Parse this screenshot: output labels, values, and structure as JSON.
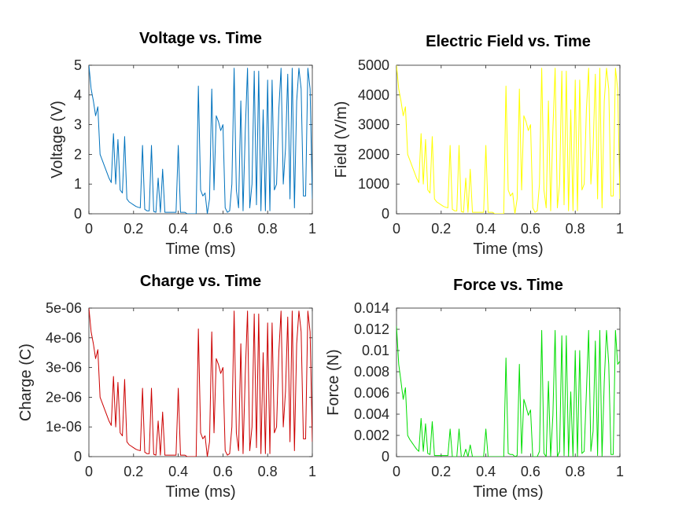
{
  "figure": {
    "background": "#ffffff"
  },
  "chart_data": [
    {
      "type": "line",
      "title": "Voltage vs. Time",
      "xlabel": "Time (ms)",
      "ylabel": "Voltage (V)",
      "xlim": [
        0,
        1
      ],
      "ylim": [
        0,
        5
      ],
      "xticks": [
        "0",
        "0.2",
        "0.4",
        "0.6",
        "0.8",
        "1"
      ],
      "yticks": [
        "0",
        "1",
        "2",
        "3",
        "4",
        "5"
      ],
      "grid": false,
      "series": [
        {
          "color": "#0072BD",
          "x": [
            0,
            0.01,
            0.02,
            0.03,
            0.04,
            0.05,
            0.06,
            0.07,
            0.08,
            0.09,
            0.1,
            0.11,
            0.12,
            0.13,
            0.14,
            0.15,
            0.16,
            0.17,
            0.18,
            0.19,
            0.2,
            0.21,
            0.22,
            0.23,
            0.24,
            0.25,
            0.26,
            0.27,
            0.28,
            0.29,
            0.3,
            0.31,
            0.32,
            0.33,
            0.34,
            0.35,
            0.36,
            0.37,
            0.38,
            0.39,
            0.4,
            0.41,
            0.42,
            0.43,
            0.44,
            0.45,
            0.46,
            0.47,
            0.48,
            0.49,
            0.5,
            0.51,
            0.52,
            0.53,
            0.54,
            0.55,
            0.56,
            0.57,
            0.58,
            0.59,
            0.6,
            0.61,
            0.62,
            0.63,
            0.64,
            0.65,
            0.66,
            0.67,
            0.68,
            0.69,
            0.7,
            0.71,
            0.72,
            0.73,
            0.74,
            0.75,
            0.76,
            0.77,
            0.78,
            0.79,
            0.8,
            0.81,
            0.82,
            0.83,
            0.84,
            0.85,
            0.86,
            0.87,
            0.88,
            0.89,
            0.9,
            0.91,
            0.92,
            0.93,
            0.94,
            0.95,
            0.96,
            0.97,
            0.98,
            0.99,
            1
          ],
          "y": [
            5,
            4.2,
            3.8,
            3.3,
            3.6,
            2.0,
            1.8,
            1.6,
            1.4,
            1.2,
            1.05,
            2.7,
            1.0,
            2.5,
            0.8,
            0.7,
            2.6,
            0.5,
            0.4,
            0.35,
            0.3,
            0.25,
            0.22,
            0.2,
            2.3,
            0.15,
            0.1,
            0.1,
            2.3,
            0.08,
            0.05,
            1.2,
            0.05,
            1.5,
            0.05,
            0.05,
            0.05,
            0.05,
            0.05,
            0.05,
            2.3,
            0.05,
            0.05,
            0.05,
            0,
            0,
            0,
            0,
            0,
            4.3,
            0.8,
            0.6,
            0.7,
            0,
            0.5,
            4.2,
            0.8,
            3.3,
            3.1,
            2.8,
            3.0,
            0.2,
            0.05,
            0.1,
            1.0,
            4.9,
            0.8,
            0.2,
            3.8,
            0.1,
            2.8,
            4.9,
            0.2,
            1.0,
            4.8,
            0.3,
            4.8,
            0.1,
            3.5,
            0.1,
            4.5,
            0.1,
            4.5,
            0.8,
            1.0,
            3.5,
            4.9,
            1.0,
            2.2,
            4.7,
            0.5,
            4.9,
            0.2,
            3.8,
            4.9,
            4.2,
            0.6,
            0.6,
            4.9,
            4.2,
            0.5
          ]
        }
      ]
    },
    {
      "type": "line",
      "title": "Electric Field vs. Time",
      "xlabel": "Time (ms)",
      "ylabel": "Field (V/m)",
      "xlim": [
        0,
        1
      ],
      "ylim": [
        0,
        5000
      ],
      "xticks": [
        "0",
        "0.2",
        "0.4",
        "0.6",
        "0.8",
        "1"
      ],
      "yticks": [
        "0",
        "1000",
        "2000",
        "3000",
        "4000",
        "5000"
      ],
      "grid": false,
      "series": [
        {
          "color": "#FFFF00",
          "x": [
            0,
            0.01,
            0.02,
            0.03,
            0.04,
            0.05,
            0.06,
            0.07,
            0.08,
            0.09,
            0.1,
            0.11,
            0.12,
            0.13,
            0.14,
            0.15,
            0.16,
            0.17,
            0.18,
            0.19,
            0.2,
            0.21,
            0.22,
            0.23,
            0.24,
            0.25,
            0.26,
            0.27,
            0.28,
            0.29,
            0.3,
            0.31,
            0.32,
            0.33,
            0.34,
            0.35,
            0.36,
            0.37,
            0.38,
            0.39,
            0.4,
            0.41,
            0.42,
            0.43,
            0.44,
            0.45,
            0.46,
            0.47,
            0.48,
            0.49,
            0.5,
            0.51,
            0.52,
            0.53,
            0.54,
            0.55,
            0.56,
            0.57,
            0.58,
            0.59,
            0.6,
            0.61,
            0.62,
            0.63,
            0.64,
            0.65,
            0.66,
            0.67,
            0.68,
            0.69,
            0.7,
            0.71,
            0.72,
            0.73,
            0.74,
            0.75,
            0.76,
            0.77,
            0.78,
            0.79,
            0.8,
            0.81,
            0.82,
            0.83,
            0.84,
            0.85,
            0.86,
            0.87,
            0.88,
            0.89,
            0.9,
            0.91,
            0.92,
            0.93,
            0.94,
            0.95,
            0.96,
            0.97,
            0.98,
            0.99,
            1
          ],
          "y": [
            5000,
            4200,
            3800,
            3300,
            3600,
            2000,
            1800,
            1600,
            1400,
            1200,
            1050,
            2700,
            1000,
            2500,
            800,
            700,
            2600,
            500,
            400,
            350,
            300,
            250,
            220,
            200,
            2300,
            150,
            100,
            100,
            2300,
            80,
            50,
            1200,
            50,
            1500,
            50,
            50,
            50,
            50,
            50,
            50,
            2300,
            50,
            50,
            50,
            0,
            0,
            0,
            0,
            0,
            4300,
            800,
            600,
            700,
            0,
            500,
            4200,
            800,
            3300,
            3100,
            2800,
            3000,
            200,
            50,
            100,
            1000,
            4900,
            800,
            200,
            3800,
            100,
            2800,
            4900,
            200,
            1000,
            4800,
            300,
            4800,
            100,
            3500,
            100,
            4500,
            100,
            4500,
            800,
            1000,
            3500,
            4900,
            1000,
            2200,
            4700,
            500,
            4900,
            200,
            3800,
            4900,
            4200,
            600,
            600,
            4900,
            4200,
            500
          ]
        }
      ]
    },
    {
      "type": "line",
      "title": "Charge vs. Time",
      "xlabel": "Time (ms)",
      "ylabel": "Charge (C)",
      "xlim": [
        0,
        1
      ],
      "ylim": [
        0,
        5e-06
      ],
      "xticks": [
        "0",
        "0.2",
        "0.4",
        "0.6",
        "0.8",
        "1"
      ],
      "yticks": [
        "0",
        "1e-06",
        "2e-06",
        "3e-06",
        "4e-06",
        "5e-06"
      ],
      "grid": false,
      "series": [
        {
          "color": "#CC0000",
          "x": [
            0,
            0.01,
            0.02,
            0.03,
            0.04,
            0.05,
            0.06,
            0.07,
            0.08,
            0.09,
            0.1,
            0.11,
            0.12,
            0.13,
            0.14,
            0.15,
            0.16,
            0.17,
            0.18,
            0.19,
            0.2,
            0.21,
            0.22,
            0.23,
            0.24,
            0.25,
            0.26,
            0.27,
            0.28,
            0.29,
            0.3,
            0.31,
            0.32,
            0.33,
            0.34,
            0.35,
            0.36,
            0.37,
            0.38,
            0.39,
            0.4,
            0.41,
            0.42,
            0.43,
            0.44,
            0.45,
            0.46,
            0.47,
            0.48,
            0.49,
            0.5,
            0.51,
            0.52,
            0.53,
            0.54,
            0.55,
            0.56,
            0.57,
            0.58,
            0.59,
            0.6,
            0.61,
            0.62,
            0.63,
            0.64,
            0.65,
            0.66,
            0.67,
            0.68,
            0.69,
            0.7,
            0.71,
            0.72,
            0.73,
            0.74,
            0.75,
            0.76,
            0.77,
            0.78,
            0.79,
            0.8,
            0.81,
            0.82,
            0.83,
            0.84,
            0.85,
            0.86,
            0.87,
            0.88,
            0.89,
            0.9,
            0.91,
            0.92,
            0.93,
            0.94,
            0.95,
            0.96,
            0.97,
            0.98,
            0.99,
            1
          ],
          "y": [
            5e-06,
            4.2e-06,
            3.8e-06,
            3.3e-06,
            3.6e-06,
            2e-06,
            1.8e-06,
            1.6e-06,
            1.4e-06,
            1.2e-06,
            1.05e-06,
            2.7e-06,
            1e-06,
            2.5e-06,
            8e-07,
            7e-07,
            2.6e-06,
            5e-07,
            4e-07,
            3.5e-07,
            3e-07,
            2.5e-07,
            2.2e-07,
            2e-07,
            2.3e-06,
            1.5e-07,
            1e-07,
            1e-07,
            2.3e-06,
            8e-08,
            5e-08,
            1.2e-06,
            5e-08,
            1.5e-06,
            5e-08,
            5e-08,
            5e-08,
            5e-08,
            5e-08,
            5e-08,
            2.3e-06,
            5e-08,
            5e-08,
            5e-08,
            0,
            0,
            0,
            0,
            0,
            4.3e-06,
            8e-07,
            6e-07,
            7e-07,
            0,
            5e-07,
            4.2e-06,
            8e-07,
            3.3e-06,
            3.1e-06,
            2.8e-06,
            3e-06,
            2e-07,
            5e-08,
            1e-07,
            1e-06,
            4.9e-06,
            8e-07,
            2e-07,
            3.8e-06,
            1e-07,
            2.8e-06,
            4.9e-06,
            2e-07,
            1e-06,
            4.8e-06,
            3e-07,
            4.8e-06,
            1e-07,
            3.5e-06,
            1e-07,
            4.5e-06,
            1e-07,
            4.5e-06,
            8e-07,
            1e-06,
            3.5e-06,
            4.9e-06,
            1e-06,
            2.2e-06,
            4.7e-06,
            5e-07,
            4.9e-06,
            2e-07,
            3.8e-06,
            4.9e-06,
            4.2e-06,
            6e-07,
            6e-07,
            4.9e-06,
            4.2e-06,
            5e-07
          ]
        }
      ]
    },
    {
      "type": "line",
      "title": "Force vs. Time",
      "xlabel": "Time (ms)",
      "ylabel": "Force (N)",
      "xlim": [
        0,
        1
      ],
      "ylim": [
        0,
        0.014
      ],
      "xticks": [
        "0",
        "0.2",
        "0.4",
        "0.6",
        "0.8",
        "1"
      ],
      "yticks": [
        "0",
        "0.002",
        "0.004",
        "0.006",
        "0.008",
        "0.01",
        "0.012",
        "0.014"
      ],
      "grid": false,
      "series": [
        {
          "color": "#00DD00",
          "x": [
            0,
            0.01,
            0.02,
            0.03,
            0.04,
            0.05,
            0.06,
            0.07,
            0.08,
            0.09,
            0.1,
            0.11,
            0.12,
            0.13,
            0.14,
            0.15,
            0.16,
            0.17,
            0.18,
            0.19,
            0.2,
            0.21,
            0.22,
            0.23,
            0.24,
            0.25,
            0.26,
            0.27,
            0.28,
            0.29,
            0.3,
            0.31,
            0.32,
            0.33,
            0.34,
            0.35,
            0.36,
            0.37,
            0.38,
            0.39,
            0.4,
            0.41,
            0.42,
            0.43,
            0.44,
            0.45,
            0.46,
            0.47,
            0.48,
            0.49,
            0.5,
            0.51,
            0.52,
            0.53,
            0.54,
            0.55,
            0.56,
            0.57,
            0.58,
            0.59,
            0.6,
            0.61,
            0.62,
            0.63,
            0.64,
            0.65,
            0.66,
            0.67,
            0.68,
            0.69,
            0.7,
            0.71,
            0.72,
            0.73,
            0.74,
            0.75,
            0.76,
            0.77,
            0.78,
            0.79,
            0.8,
            0.81,
            0.82,
            0.83,
            0.84,
            0.85,
            0.86,
            0.87,
            0.88,
            0.89,
            0.9,
            0.91,
            0.92,
            0.93,
            0.94,
            0.95,
            0.96,
            0.97,
            0.98,
            0.99,
            1
          ],
          "y": [
            0.0123,
            0.0087,
            0.0071,
            0.0054,
            0.0065,
            0.002,
            0.0016,
            0.0013,
            0.001,
            0.0007,
            0.0005,
            0.0036,
            0.0005,
            0.0031,
            0.0003,
            0.0002,
            0.0033,
            0.0001,
            0.0001,
            0.0001,
            0.0001,
            0.0001,
            0.0001,
            0.0001,
            0.0026,
            0,
            0,
            0,
            0.0026,
            0,
            0,
            0.0007,
            0,
            0.0011,
            0,
            0,
            0,
            0,
            0,
            0,
            0.0026,
            0,
            0,
            0,
            0,
            0,
            0,
            0,
            0,
            0.0093,
            0.0003,
            0.0002,
            0.0002,
            0,
            0.0001,
            0.0087,
            0.0003,
            0.0054,
            0.0047,
            0.0039,
            0.0044,
            0,
            0,
            0,
            0.0005,
            0.0119,
            0.0003,
            0,
            0.0071,
            0,
            0.0039,
            0.0119,
            0,
            0.0005,
            0.0114,
            0.0001,
            0.0114,
            0,
            0.0061,
            0,
            0.01,
            0,
            0.01,
            0.0003,
            0.0005,
            0.0061,
            0.0119,
            0.0005,
            0.0024,
            0.0109,
            0.0001,
            0.0119,
            0,
            0.0071,
            0.0119,
            0.0087,
            0.0002,
            0.0002,
            0.0119,
            0.0087,
            0.009
          ]
        }
      ]
    }
  ]
}
